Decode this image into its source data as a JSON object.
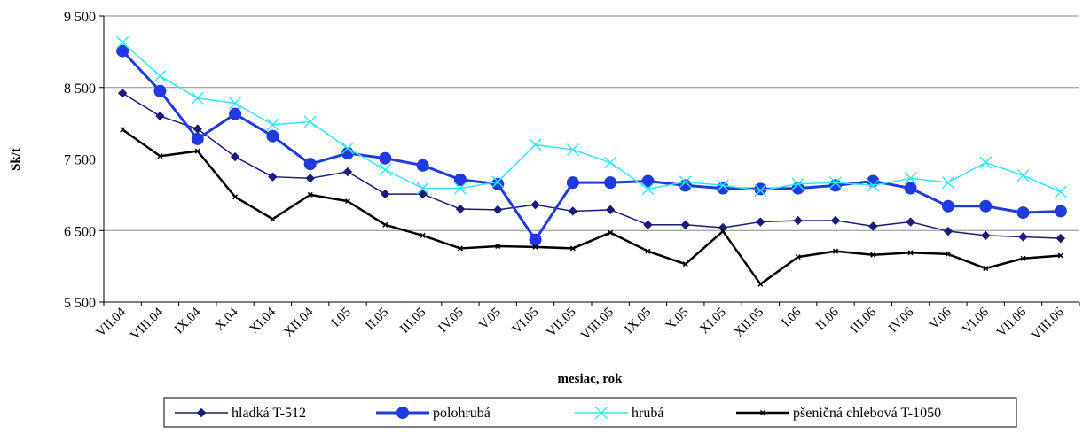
{
  "chart_data": {
    "type": "line",
    "title": "",
    "xlabel": "mesiac, rok",
    "ylabel": "Sk/t",
    "ylim": [
      5500,
      9500
    ],
    "y_ticks": [
      {
        "value": 5500,
        "label": "5 500"
      },
      {
        "value": 6500,
        "label": "6 500"
      },
      {
        "value": 7500,
        "label": "7 500"
      },
      {
        "value": 8500,
        "label": "8 500"
      },
      {
        "value": 9500,
        "label": "9 500"
      }
    ],
    "grid": true,
    "legend_position": "bottom",
    "categories": [
      "VII.04",
      "VIII.04",
      "IX.04",
      "X.04",
      "XI.04",
      "XII.04",
      "I.05",
      "II.05",
      "III.05",
      "IV.05",
      "V.05",
      "VI.05",
      "VII.05",
      "VIII.05",
      "IX.05",
      "X.05",
      "XI.05",
      "XII.05",
      "I.06",
      "II.06",
      "III.06",
      "IV.06",
      "V.06",
      "VI.06",
      "VII.06",
      "VIII.06"
    ],
    "x_tick_labels": [
      "VII.04",
      "VIII.04",
      "IX.04",
      "X.04",
      "XI.04",
      "XII.04",
      "I.05",
      "II.05",
      "III.05",
      "IV.05",
      "V.05",
      "VI.05",
      "VII.05",
      "VIII.05",
      "IX.05",
      "X.05",
      "XI.05",
      "XII.05",
      "I.06",
      "II.06",
      "III.06",
      "IV.06",
      "V.06",
      "VI.06",
      "VII.06",
      "VIII.06"
    ],
    "series": [
      {
        "name": "hladká T-512",
        "color": "#1a1a7a",
        "marker": "diamond",
        "values": [
          8420,
          8100,
          7920,
          7530,
          7250,
          7230,
          7320,
          7010,
          7010,
          6800,
          6790,
          6860,
          6770,
          6790,
          6580,
          6580,
          6540,
          6620,
          6640,
          6640,
          6560,
          6620,
          6490,
          6430,
          6410,
          6390
        ]
      },
      {
        "name": "polohrubá",
        "color": "#1f3adf",
        "marker": "circle",
        "values": [
          9010,
          8450,
          7780,
          8130,
          7820,
          7430,
          7580,
          7510,
          7410,
          7210,
          7150,
          6370,
          7170,
          7170,
          7190,
          7130,
          7090,
          7080,
          7090,
          7130,
          7190,
          7090,
          6840,
          6840,
          6750,
          6770
        ]
      },
      {
        "name": "hrubá",
        "color": "#2ee8f5",
        "marker": "x",
        "values": [
          9130,
          8660,
          8350,
          8280,
          7980,
          8020,
          7650,
          7350,
          7090,
          7090,
          7180,
          7700,
          7630,
          7450,
          7080,
          7180,
          7130,
          7060,
          7150,
          7170,
          7130,
          7230,
          7170,
          7450,
          7270,
          7040
        ]
      },
      {
        "name": "pšeničná chlebová T-1050",
        "color": "#000000",
        "marker": "x",
        "values": [
          7910,
          7540,
          7610,
          6970,
          6660,
          7000,
          6910,
          6580,
          6430,
          6250,
          6280,
          6270,
          6250,
          6470,
          6210,
          6030,
          6490,
          5750,
          6130,
          6210,
          6160,
          6190,
          6170,
          5970,
          6110,
          6150
        ]
      }
    ]
  }
}
